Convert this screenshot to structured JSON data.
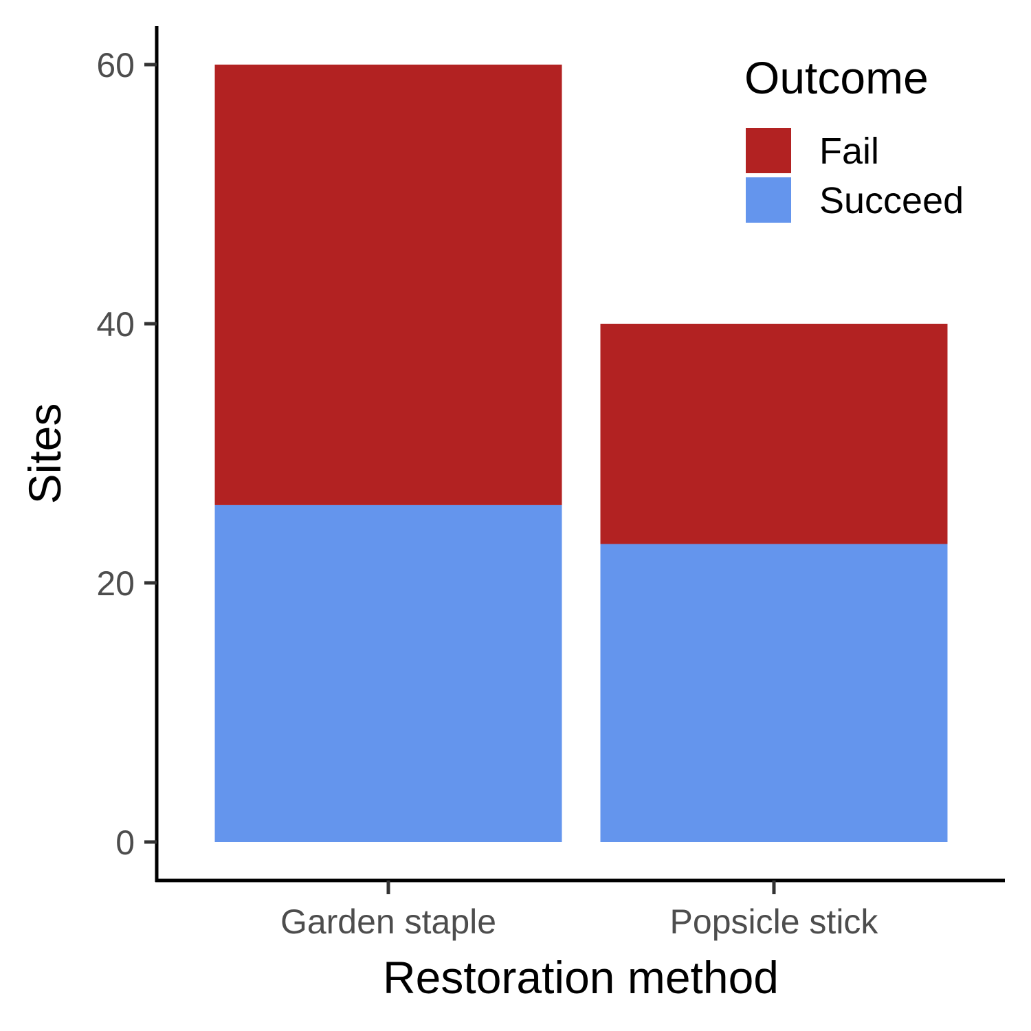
{
  "chart_data": {
    "type": "bar",
    "stacked": true,
    "categories": [
      "Garden staple",
      "Popsicle stick"
    ],
    "series": [
      {
        "name": "Succeed",
        "values": [
          26,
          23
        ],
        "color": "#6495ED"
      },
      {
        "name": "Fail",
        "values": [
          34,
          17
        ],
        "color": "#B22222"
      }
    ],
    "title": "",
    "xlabel": "Restoration method",
    "ylabel": "Sites",
    "ylim": [
      -3,
      63
    ],
    "yticks": [
      0,
      20,
      40,
      60
    ],
    "ytick_labels": [
      "0",
      "20",
      "40",
      "60"
    ],
    "grid": false,
    "legend": {
      "title": "Outcome",
      "placement": "top-right",
      "entries": [
        {
          "label": "Fail",
          "color": "#B22222"
        },
        {
          "label": "Succeed",
          "color": "#6495ED"
        }
      ]
    }
  }
}
